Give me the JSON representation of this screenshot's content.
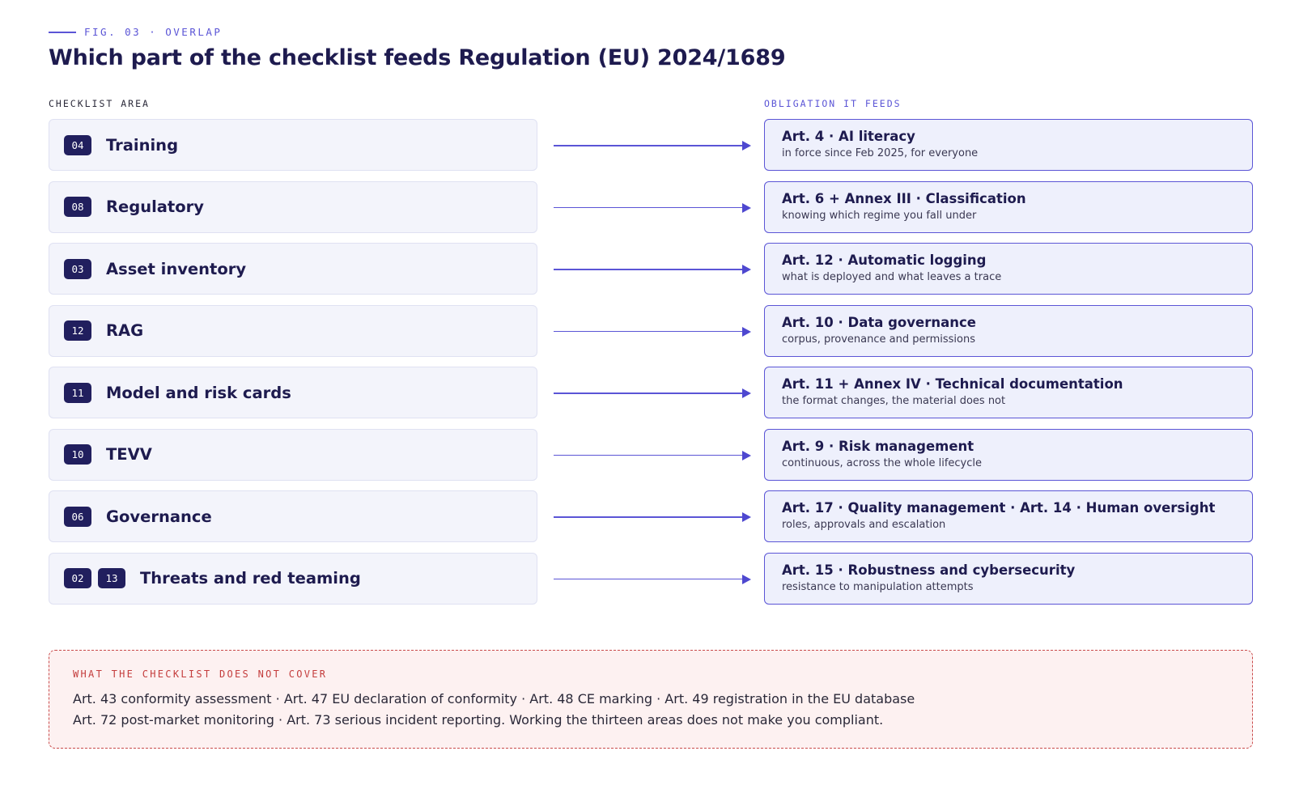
{
  "figure": {
    "label": "FIG. 03 · OVERLAP",
    "title": "Which part of the checklist feeds Regulation (EU) 2024/1689"
  },
  "columns": {
    "left": "CHECKLIST AREA",
    "right": "OBLIGATION IT FEEDS"
  },
  "colors": {
    "accent": "#5b55d6",
    "badge": "#211f5e",
    "warning": "#c43d3d"
  },
  "rows": [
    {
      "badges": [
        "04"
      ],
      "area": "Training",
      "article": "Art. 4 · AI literacy",
      "note": "in force since Feb 2025, for everyone"
    },
    {
      "badges": [
        "08"
      ],
      "area": "Regulatory",
      "article": "Art. 6 + Annex III · Classification",
      "note": "knowing which regime you fall under"
    },
    {
      "badges": [
        "03"
      ],
      "area": "Asset inventory",
      "article": "Art. 12 · Automatic logging",
      "note": "what is deployed and what leaves a trace"
    },
    {
      "badges": [
        "12"
      ],
      "area": "RAG",
      "article": "Art. 10 · Data governance",
      "note": "corpus, provenance and permissions"
    },
    {
      "badges": [
        "11"
      ],
      "area": "Model and risk cards",
      "article": "Art. 11 + Annex IV · Technical documentation",
      "note": "the format changes, the material does not"
    },
    {
      "badges": [
        "10"
      ],
      "area": "TEVV",
      "article": "Art. 9 · Risk management",
      "note": "continuous, across the whole lifecycle"
    },
    {
      "badges": [
        "06"
      ],
      "area": "Governance",
      "article": "Art. 17 · Quality management · Art. 14 · Human oversight",
      "note": "roles, approvals and escalation"
    },
    {
      "badges": [
        "02",
        "13"
      ],
      "area": "Threats and red teaming",
      "article": "Art. 15 · Robustness and cybersecurity",
      "note": "resistance to manipulation attempts"
    }
  ],
  "not_covered": {
    "heading": "WHAT THE CHECKLIST DOES NOT COVER",
    "line1": "Art. 43 conformity assessment · Art. 47 EU declaration of conformity · Art. 48 CE marking · Art. 49 registration in the EU database",
    "line2": "Art. 72 post-market monitoring · Art. 73 serious incident reporting. Working the thirteen areas does not make you compliant."
  }
}
